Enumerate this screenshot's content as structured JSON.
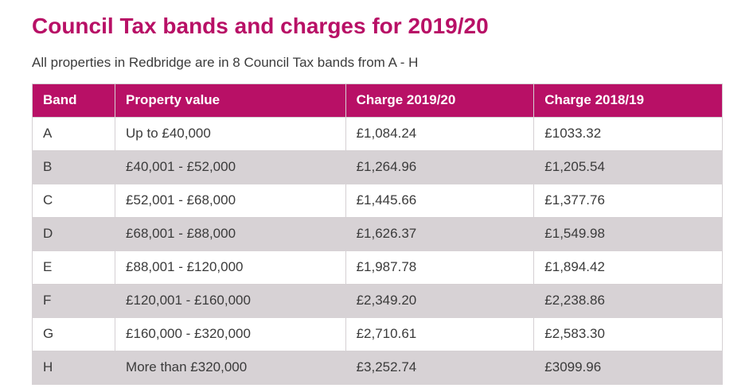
{
  "page": {
    "title": "Council Tax bands and charges for 2019/20",
    "subtitle": "All properties in Redbridge are in 8 Council Tax bands from A - H"
  },
  "colors": {
    "accent": "#b81066",
    "zebra_row": "#d7d2d5",
    "border": "#d5d0d3",
    "body_text": "#3b3b3b",
    "header_text": "#ffffff"
  },
  "table": {
    "columns": [
      "Band",
      "Property value",
      "Charge 2019/20",
      "Charge 2018/19"
    ],
    "rows": [
      [
        "A",
        "Up to £40,000",
        "£1,084.24",
        "£1033.32"
      ],
      [
        "B",
        "£40,001 - £52,000",
        "£1,264.96",
        "£1,205.54"
      ],
      [
        "C",
        "£52,001 - £68,000",
        "£1,445.66",
        "£1,377.76"
      ],
      [
        "D",
        "£68,001 - £88,000",
        "£1,626.37",
        "£1,549.98"
      ],
      [
        "E",
        "£88,001 - £120,000",
        "£1,987.78",
        "£1,894.42"
      ],
      [
        "F",
        "£120,001 - £160,000",
        "£2,349.20",
        "£2,238.86"
      ],
      [
        "G",
        "£160,000 - £320,000",
        "£2,710.61",
        "£2,583.30"
      ],
      [
        "H",
        "More than £320,000",
        "£3,252.74",
        "£3099.96"
      ]
    ]
  }
}
